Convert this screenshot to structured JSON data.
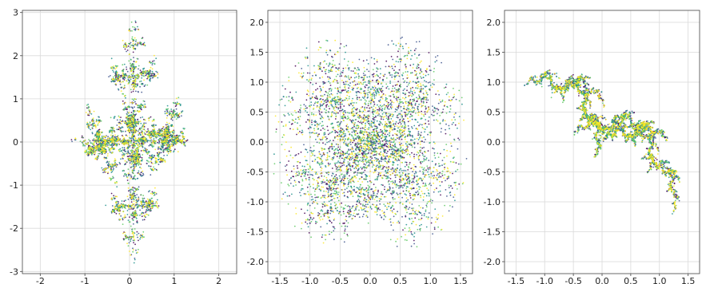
{
  "chart_data": [
    {
      "type": "scatter",
      "xlim": [
        -2.4,
        2.4
      ],
      "ylim": [
        -3.05,
        3.05
      ],
      "xticks": [
        "-2",
        "-1",
        "0",
        "1",
        "2"
      ],
      "yticks": [
        "-3",
        "-2",
        "-1",
        "0",
        "1",
        "2",
        "3"
      ],
      "grid": true,
      "colormap": "viridis",
      "shape": "vertical cross-shaped fractal curve",
      "x_extent": [
        -1.3,
        1.3
      ],
      "y_extent": [
        -2.8,
        2.8
      ]
    },
    {
      "type": "scatter",
      "xlim": [
        -1.7,
        1.7
      ],
      "ylim": [
        -2.2,
        2.2
      ],
      "xticks": [
        "-1.5",
        "-1.0",
        "-0.5",
        "0.0",
        "0.5",
        "1.0",
        "1.5"
      ],
      "yticks": [
        "-2.0",
        "-1.5",
        "-1.0",
        "-0.5",
        "0.0",
        "0.5",
        "1.0",
        "1.5",
        "2.0"
      ],
      "grid": true,
      "colormap": "viridis",
      "shape": "symmetric lobed fractal curve",
      "x_extent": [
        -1.6,
        1.6
      ],
      "y_extent": [
        -1.75,
        1.75
      ]
    },
    {
      "type": "scatter",
      "xlim": [
        -1.7,
        1.7
      ],
      "ylim": [
        -2.2,
        2.2
      ],
      "xticks": [
        "-1.5",
        "-1.0",
        "-0.5",
        "0.0",
        "0.5",
        "1.0",
        "1.5"
      ],
      "yticks": [
        "-2.0",
        "-1.5",
        "-1.0",
        "-0.5",
        "0.0",
        "0.5",
        "1.0",
        "1.5",
        "2.0"
      ],
      "grid": true,
      "colormap": "viridis",
      "shape": "diagonal dendritic fractal curve",
      "x_extent": [
        -1.35,
        1.35
      ],
      "y_extent": [
        -1.2,
        1.2
      ]
    }
  ],
  "colors": {
    "viridis": [
      "#440154",
      "#3b528b",
      "#21918c",
      "#5ec962",
      "#fde725"
    ],
    "grid": "#d9d9d9",
    "spine": "#444444"
  }
}
